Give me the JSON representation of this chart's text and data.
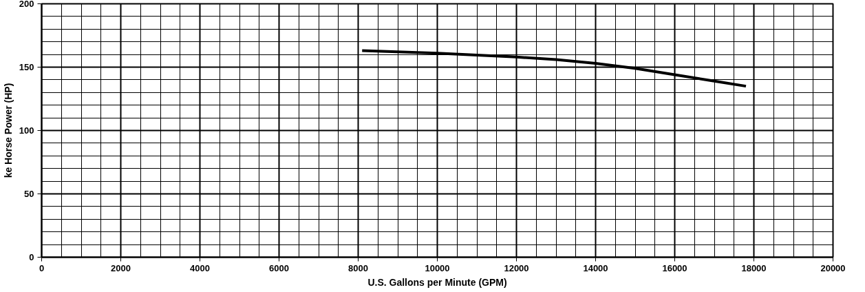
{
  "chart_data": {
    "type": "line",
    "xlabel": "U.S. Gallons per Minute (GPM)",
    "ylabel": "ke Horse Power (HP)",
    "x": [
      8100,
      10000,
      12000,
      13000,
      14000,
      15000,
      16000,
      17000,
      17800
    ],
    "series": [
      {
        "color": "#000000",
        "values": [
          163,
          161,
          158,
          156,
          153,
          149,
          144,
          139,
          135
        ]
      }
    ],
    "xlim": [
      0,
      20000
    ],
    "ylim": [
      0,
      200
    ],
    "xticks": [
      0,
      2000,
      4000,
      6000,
      8000,
      10000,
      12000,
      14000,
      16000,
      18000,
      20000
    ],
    "yticks": [
      0,
      50,
      100,
      150,
      200
    ],
    "grid": true
  }
}
